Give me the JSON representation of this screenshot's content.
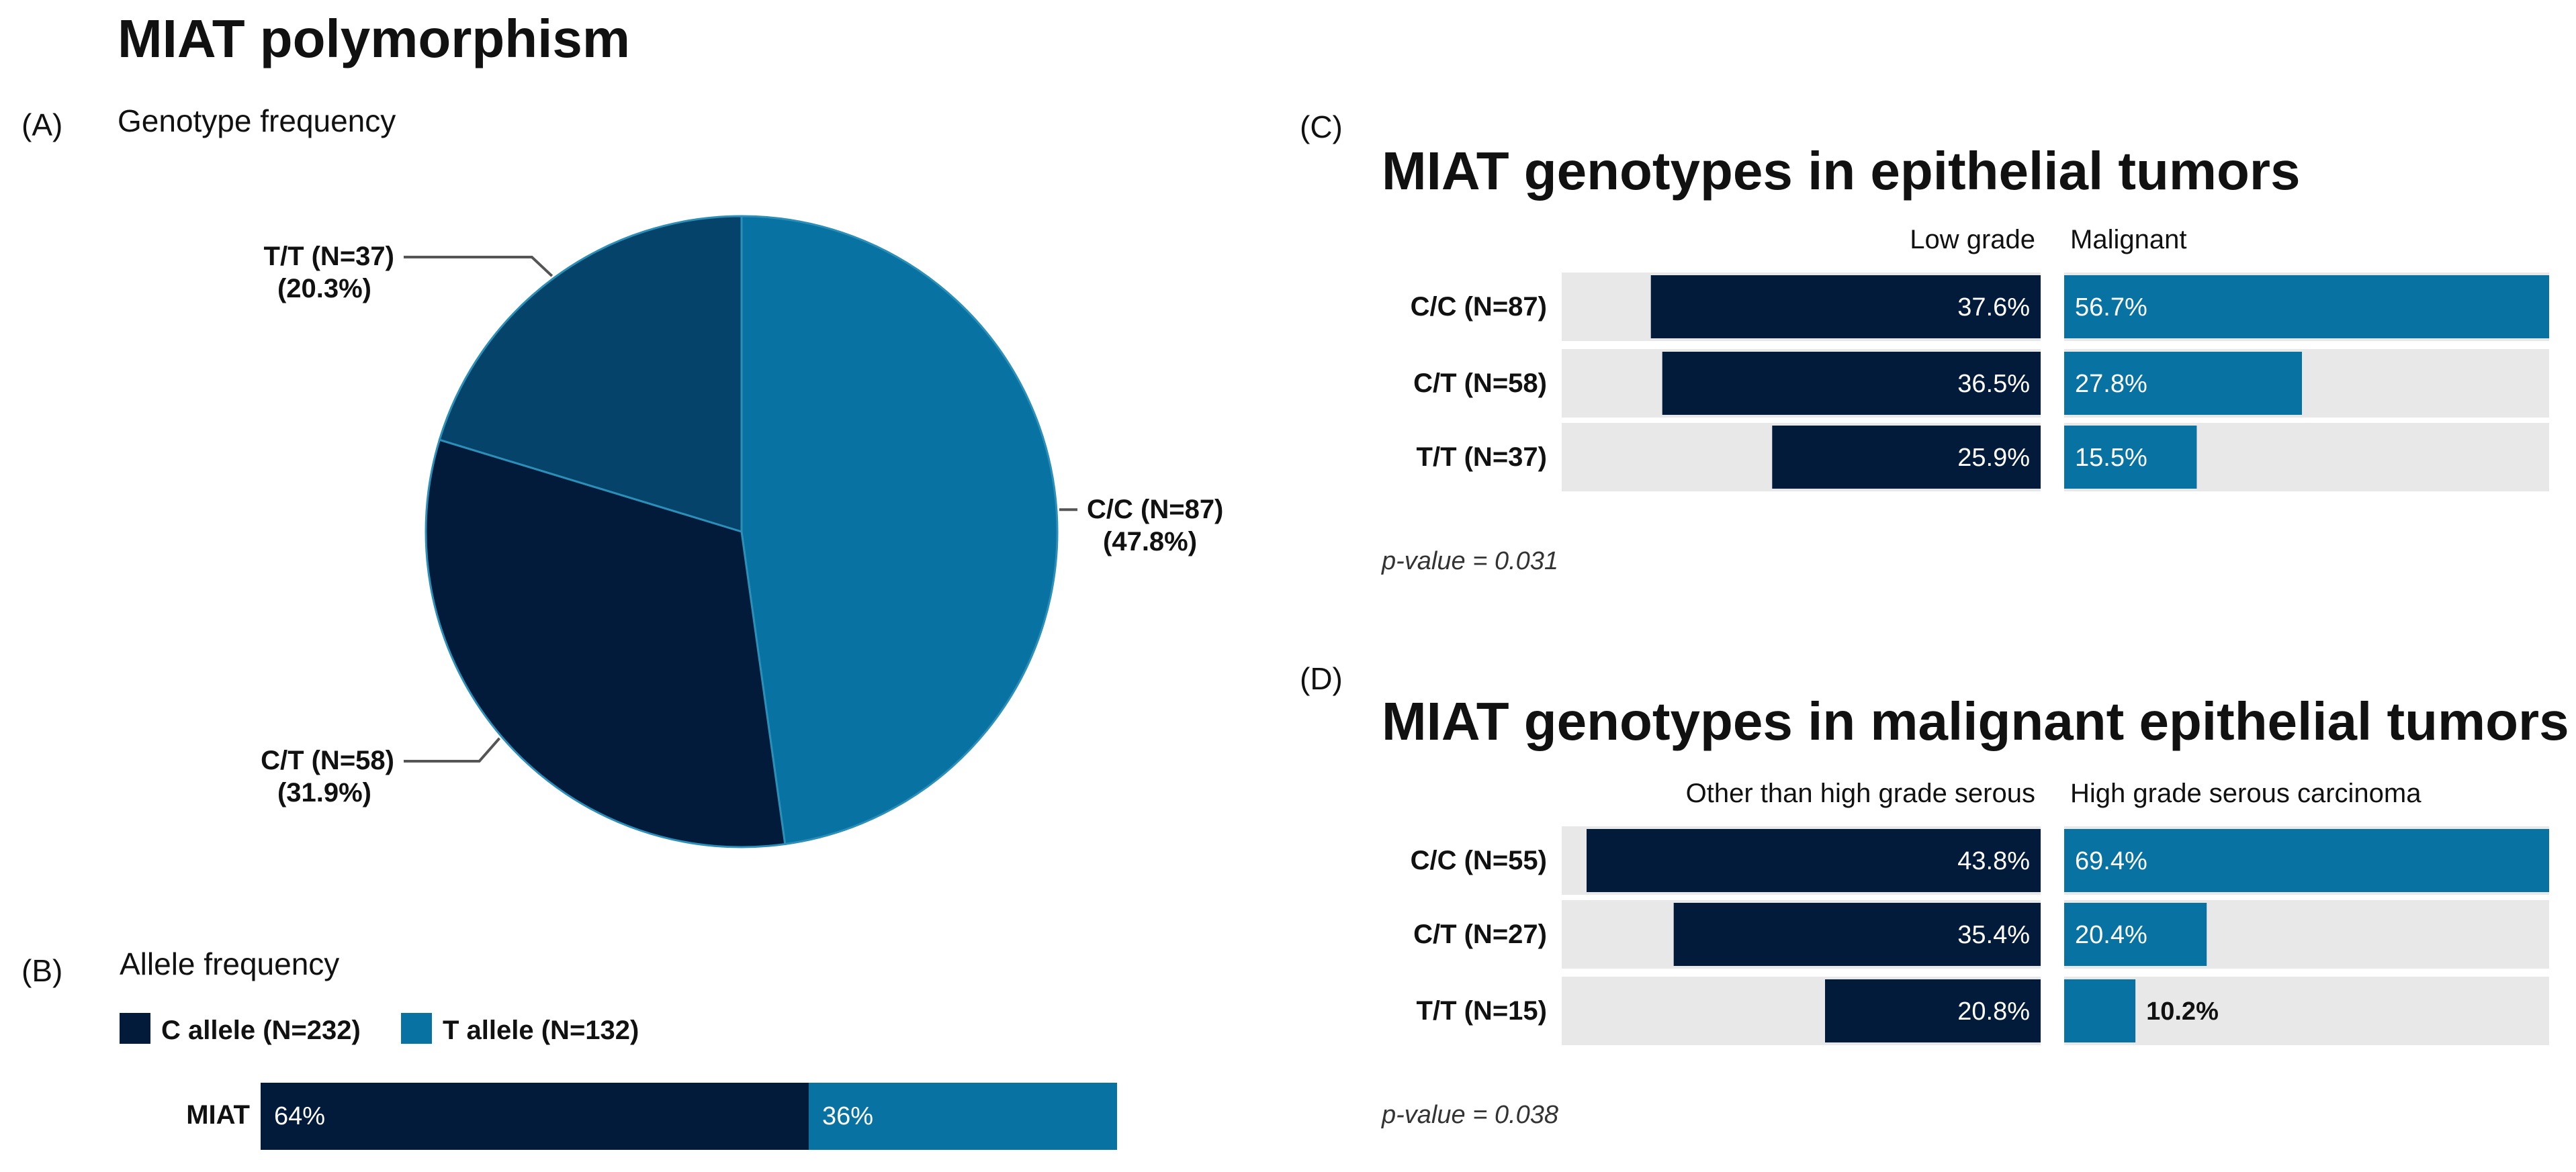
{
  "figure": {
    "title": "MIAT polymorphism",
    "colors": {
      "dark": "#031B3A",
      "light": "#0872A3",
      "mid": "#06436A",
      "track": "#E8E8E8"
    }
  },
  "chart_data": [
    {
      "id": "A",
      "panel_label": "(A)",
      "type": "pie",
      "title": "Genotype frequency",
      "slices": [
        {
          "label": "C/C (N=87)",
          "pct_label": "(47.8%)",
          "value": 47.8,
          "color": "#0872A3"
        },
        {
          "label": "C/T (N=58)",
          "pct_label": "(31.9%)",
          "value": 31.9,
          "color": "#031B3A"
        },
        {
          "label": "T/T (N=37)",
          "pct_label": "(20.3%)",
          "value": 20.3,
          "color": "#06436A"
        }
      ]
    },
    {
      "id": "B",
      "panel_label": "(B)",
      "type": "bar",
      "title": "Allele frequency",
      "categories": [
        "MIAT"
      ],
      "series": [
        {
          "name": "C allele (N=232)",
          "values": [
            64
          ],
          "value_labels": [
            "64%"
          ],
          "color": "#031B3A"
        },
        {
          "name": "T allele (N=132)",
          "values": [
            36
          ],
          "value_labels": [
            "36%"
          ],
          "color": "#0872A3"
        }
      ],
      "ylim": [
        0,
        100
      ]
    },
    {
      "id": "C",
      "panel_label": "(C)",
      "type": "bar",
      "title": "MIAT genotypes in epithelial tumors",
      "categories": [
        "C/C (N=87)",
        "C/T (N=58)",
        "T/T (N=37)"
      ],
      "series": [
        {
          "name": "Low grade",
          "values": [
            37.6,
            36.5,
            25.9
          ],
          "value_labels": [
            "37.6%",
            "36.5%",
            "25.9%"
          ],
          "color": "#031B3A"
        },
        {
          "name": "Malignant",
          "values": [
            56.7,
            27.8,
            15.5
          ],
          "value_labels": [
            "56.7%",
            "27.8%",
            "15.5%"
          ],
          "color": "#0872A3"
        }
      ],
      "note": "p-value = 0.031"
    },
    {
      "id": "D",
      "panel_label": "(D)",
      "type": "bar",
      "title": "MIAT genotypes in malignant epithelial tumors",
      "categories": [
        "C/C (N=55)",
        "C/T (N=27)",
        "T/T (N=15)"
      ],
      "series": [
        {
          "name": "Other than high grade serous",
          "values": [
            43.8,
            35.4,
            20.8
          ],
          "value_labels": [
            "43.8%",
            "35.4%",
            "20.8%"
          ],
          "color": "#031B3A"
        },
        {
          "name": "High grade serous carcinoma",
          "values": [
            69.4,
            20.4,
            10.2
          ],
          "value_labels": [
            "69.4%",
            "20.4%",
            "10.2%"
          ],
          "color": "#0872A3"
        }
      ],
      "note": "p-value = 0.038"
    }
  ]
}
